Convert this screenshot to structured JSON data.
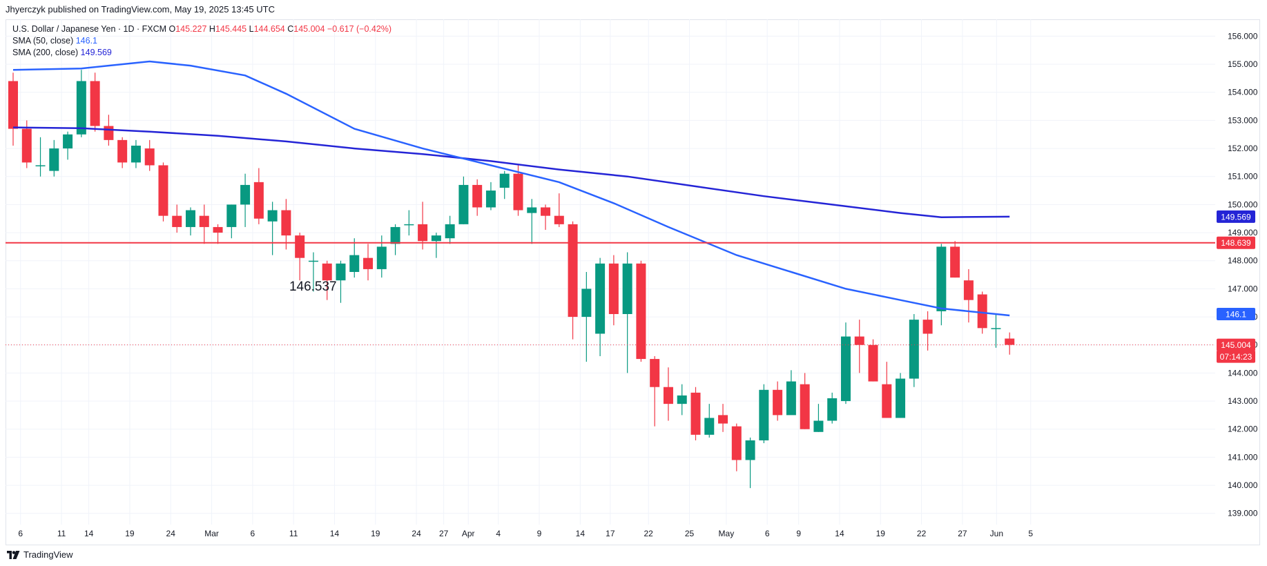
{
  "header": {
    "published_by": "Jhyerczyk published on TradingView.com, May 19, 2025 13:45 UTC"
  },
  "legend": {
    "symbol": "U.S. Dollar / Japanese Yen · 1D · FXCM",
    "ohlc": {
      "o_label": "O",
      "o": "145.227",
      "h_label": "H",
      "h": "145.445",
      "l_label": "L",
      "l": "144.654",
      "c_label": "C",
      "c": "145.004",
      "change": "−0.617 (−0.42%)"
    },
    "sma50_label": "SMA (50, close)",
    "sma50_value": "146.1",
    "sma200_label": "SMA (200, close)",
    "sma200_value": "149.569"
  },
  "footer": {
    "brand": "TradingView",
    "logo_icon": "tradingview-logo-icon"
  },
  "colors": {
    "up": "#089981",
    "down": "#f23645",
    "sma50": "#2962ff",
    "sma200": "#2424d6",
    "resistance": "#f23645",
    "grid": "#f0f3fa"
  },
  "chart_data": {
    "type": "candlestick",
    "title": "",
    "y_range": [
      138.6,
      156.6
    ],
    "y_ticks": [
      "156.000",
      "155.000",
      "154.000",
      "153.000",
      "152.000",
      "151.000",
      "150.000",
      "149.000",
      "148.000",
      "147.000",
      "146.000",
      "145.000",
      "144.000",
      "143.000",
      "142.000",
      "141.000",
      "140.000",
      "139.000"
    ],
    "x_tick_labels": [
      "6",
      "11",
      "14",
      "19",
      "24",
      "Mar",
      "6",
      "11",
      "14",
      "19",
      "24",
      "27",
      "Apr",
      "4",
      "9",
      "14",
      "17",
      "22",
      "25",
      "May",
      "6",
      "9",
      "14",
      "19",
      "22",
      "27",
      "Jun",
      "5"
    ],
    "price_badges": {
      "sma200": "149.569",
      "resistance": "148.639",
      "sma50": "146.1",
      "last": "145.004",
      "countdown": "07:14:23"
    },
    "resistance_level": 148.639,
    "last_price": 145.004,
    "annotation": {
      "text": "146.537",
      "price": 146.537,
      "near_bar": 22
    },
    "candles": [
      {
        "o": 154.4,
        "h": 154.7,
        "l": 152.1,
        "c": 152.7
      },
      {
        "o": 152.7,
        "h": 153.0,
        "l": 151.3,
        "c": 151.5
      },
      {
        "o": 151.4,
        "h": 152.4,
        "l": 151.0,
        "c": 151.4
      },
      {
        "o": 151.2,
        "h": 152.3,
        "l": 151.0,
        "c": 152.0
      },
      {
        "o": 152.0,
        "h": 152.6,
        "l": 151.6,
        "c": 152.5
      },
      {
        "o": 152.5,
        "h": 154.8,
        "l": 152.4,
        "c": 154.4
      },
      {
        "o": 154.4,
        "h": 154.7,
        "l": 152.6,
        "c": 152.8
      },
      {
        "o": 152.8,
        "h": 153.2,
        "l": 152.1,
        "c": 152.3
      },
      {
        "o": 152.3,
        "h": 152.4,
        "l": 151.3,
        "c": 151.5
      },
      {
        "o": 151.5,
        "h": 152.3,
        "l": 151.3,
        "c": 152.1
      },
      {
        "o": 152.0,
        "h": 152.3,
        "l": 151.2,
        "c": 151.4
      },
      {
        "o": 151.4,
        "h": 151.5,
        "l": 149.4,
        "c": 149.6
      },
      {
        "o": 149.6,
        "h": 150.0,
        "l": 149.0,
        "c": 149.2
      },
      {
        "o": 149.2,
        "h": 149.9,
        "l": 148.9,
        "c": 149.8
      },
      {
        "o": 149.6,
        "h": 150.0,
        "l": 148.6,
        "c": 149.2
      },
      {
        "o": 149.2,
        "h": 149.3,
        "l": 148.6,
        "c": 149.0
      },
      {
        "o": 149.2,
        "h": 150.0,
        "l": 148.8,
        "c": 150.0
      },
      {
        "o": 150.0,
        "h": 151.1,
        "l": 149.2,
        "c": 150.7
      },
      {
        "o": 150.8,
        "h": 151.3,
        "l": 149.3,
        "c": 149.5
      },
      {
        "o": 149.4,
        "h": 150.1,
        "l": 148.2,
        "c": 149.8
      },
      {
        "o": 149.8,
        "h": 150.2,
        "l": 148.4,
        "c": 148.9
      },
      {
        "o": 148.9,
        "h": 149.0,
        "l": 147.3,
        "c": 148.1
      },
      {
        "o": 148.0,
        "h": 148.3,
        "l": 146.9,
        "c": 148.0
      },
      {
        "o": 147.9,
        "h": 148.0,
        "l": 146.6,
        "c": 147.3
      },
      {
        "o": 147.3,
        "h": 148.0,
        "l": 146.5,
        "c": 147.9
      },
      {
        "o": 147.6,
        "h": 148.8,
        "l": 147.4,
        "c": 148.2
      },
      {
        "o": 148.1,
        "h": 148.6,
        "l": 147.3,
        "c": 147.7
      },
      {
        "o": 147.7,
        "h": 148.9,
        "l": 147.4,
        "c": 148.5
      },
      {
        "o": 148.6,
        "h": 149.3,
        "l": 148.2,
        "c": 149.2
      },
      {
        "o": 149.3,
        "h": 149.8,
        "l": 148.9,
        "c": 149.3
      },
      {
        "o": 149.3,
        "h": 150.1,
        "l": 148.4,
        "c": 148.7
      },
      {
        "o": 148.7,
        "h": 149.0,
        "l": 148.1,
        "c": 148.9
      },
      {
        "o": 148.8,
        "h": 149.6,
        "l": 148.6,
        "c": 149.3
      },
      {
        "o": 149.3,
        "h": 151.0,
        "l": 149.3,
        "c": 150.7
      },
      {
        "o": 150.7,
        "h": 150.9,
        "l": 149.6,
        "c": 149.9
      },
      {
        "o": 149.9,
        "h": 150.8,
        "l": 149.8,
        "c": 150.5
      },
      {
        "o": 150.6,
        "h": 151.2,
        "l": 150.2,
        "c": 151.1
      },
      {
        "o": 151.1,
        "h": 151.4,
        "l": 149.6,
        "c": 149.8
      },
      {
        "o": 149.7,
        "h": 150.2,
        "l": 148.6,
        "c": 149.9
      },
      {
        "o": 149.9,
        "h": 150.0,
        "l": 149.1,
        "c": 149.6
      },
      {
        "o": 149.6,
        "h": 150.4,
        "l": 149.2,
        "c": 149.3
      },
      {
        "o": 149.3,
        "h": 149.4,
        "l": 145.2,
        "c": 146.0
      },
      {
        "o": 146.0,
        "h": 147.6,
        "l": 144.4,
        "c": 147.0
      },
      {
        "o": 145.4,
        "h": 148.1,
        "l": 144.6,
        "c": 147.9
      },
      {
        "o": 147.9,
        "h": 148.2,
        "l": 145.7,
        "c": 146.1
      },
      {
        "o": 146.1,
        "h": 148.3,
        "l": 144.0,
        "c": 147.9
      },
      {
        "o": 147.9,
        "h": 148.0,
        "l": 144.4,
        "c": 144.5
      },
      {
        "o": 144.5,
        "h": 144.6,
        "l": 142.1,
        "c": 143.5
      },
      {
        "o": 143.5,
        "h": 144.2,
        "l": 142.3,
        "c": 142.9
      },
      {
        "o": 142.9,
        "h": 143.6,
        "l": 142.5,
        "c": 143.2
      },
      {
        "o": 143.3,
        "h": 143.5,
        "l": 141.6,
        "c": 141.8
      },
      {
        "o": 141.8,
        "h": 142.9,
        "l": 141.7,
        "c": 142.4
      },
      {
        "o": 142.5,
        "h": 142.9,
        "l": 141.9,
        "c": 142.2
      },
      {
        "o": 142.1,
        "h": 142.2,
        "l": 140.5,
        "c": 140.9
      },
      {
        "o": 140.9,
        "h": 141.7,
        "l": 139.9,
        "c": 141.6
      },
      {
        "o": 141.6,
        "h": 143.6,
        "l": 141.5,
        "c": 143.4
      },
      {
        "o": 143.4,
        "h": 143.7,
        "l": 142.3,
        "c": 142.5
      },
      {
        "o": 142.5,
        "h": 144.1,
        "l": 142.6,
        "c": 143.7
      },
      {
        "o": 143.6,
        "h": 144.0,
        "l": 142.0,
        "c": 142.0
      },
      {
        "o": 141.9,
        "h": 142.9,
        "l": 141.9,
        "c": 142.3
      },
      {
        "o": 142.3,
        "h": 143.3,
        "l": 142.2,
        "c": 143.1
      },
      {
        "o": 143.0,
        "h": 145.8,
        "l": 142.9,
        "c": 145.3
      },
      {
        "o": 145.3,
        "h": 145.9,
        "l": 144.0,
        "c": 145.0
      },
      {
        "o": 145.0,
        "h": 145.2,
        "l": 143.7,
        "c": 143.7
      },
      {
        "o": 143.6,
        "h": 144.4,
        "l": 142.4,
        "c": 142.4
      },
      {
        "o": 142.4,
        "h": 144.0,
        "l": 142.4,
        "c": 143.8
      },
      {
        "o": 143.8,
        "h": 146.1,
        "l": 143.5,
        "c": 145.9
      },
      {
        "o": 145.9,
        "h": 146.2,
        "l": 144.8,
        "c": 145.4
      },
      {
        "o": 146.2,
        "h": 148.6,
        "l": 145.7,
        "c": 148.5
      },
      {
        "o": 148.5,
        "h": 148.7,
        "l": 147.4,
        "c": 147.4
      },
      {
        "o": 147.3,
        "h": 147.7,
        "l": 145.8,
        "c": 146.6
      },
      {
        "o": 146.8,
        "h": 146.9,
        "l": 145.4,
        "c": 145.6
      },
      {
        "o": 145.6,
        "h": 146.1,
        "l": 144.9,
        "c": 145.6
      },
      {
        "o": 145.227,
        "h": 145.445,
        "l": 144.654,
        "c": 145.004
      }
    ],
    "sma50": [
      {
        "bar": 0,
        "v": 154.8
      },
      {
        "bar": 5,
        "v": 154.85
      },
      {
        "bar": 10,
        "v": 155.1
      },
      {
        "bar": 13,
        "v": 154.95
      },
      {
        "bar": 17,
        "v": 154.6
      },
      {
        "bar": 20,
        "v": 153.95
      },
      {
        "bar": 25,
        "v": 152.7
      },
      {
        "bar": 30,
        "v": 152.0
      },
      {
        "bar": 35,
        "v": 151.4
      },
      {
        "bar": 40,
        "v": 150.8
      },
      {
        "bar": 44,
        "v": 150.05
      },
      {
        "bar": 48,
        "v": 149.2
      },
      {
        "bar": 53,
        "v": 148.2
      },
      {
        "bar": 57,
        "v": 147.6
      },
      {
        "bar": 61,
        "v": 147.0
      },
      {
        "bar": 65,
        "v": 146.6
      },
      {
        "bar": 68,
        "v": 146.3
      },
      {
        "bar": 73,
        "v": 146.05
      }
    ],
    "sma200": [
      {
        "bar": 0,
        "v": 152.75
      },
      {
        "bar": 5,
        "v": 152.72
      },
      {
        "bar": 10,
        "v": 152.6
      },
      {
        "bar": 15,
        "v": 152.45
      },
      {
        "bar": 20,
        "v": 152.25
      },
      {
        "bar": 25,
        "v": 152.0
      },
      {
        "bar": 30,
        "v": 151.8
      },
      {
        "bar": 35,
        "v": 151.55
      },
      {
        "bar": 40,
        "v": 151.25
      },
      {
        "bar": 45,
        "v": 151.0
      },
      {
        "bar": 50,
        "v": 150.65
      },
      {
        "bar": 55,
        "v": 150.3
      },
      {
        "bar": 60,
        "v": 150.0
      },
      {
        "bar": 65,
        "v": 149.7
      },
      {
        "bar": 68,
        "v": 149.55
      },
      {
        "bar": 73,
        "v": 149.569
      }
    ]
  }
}
